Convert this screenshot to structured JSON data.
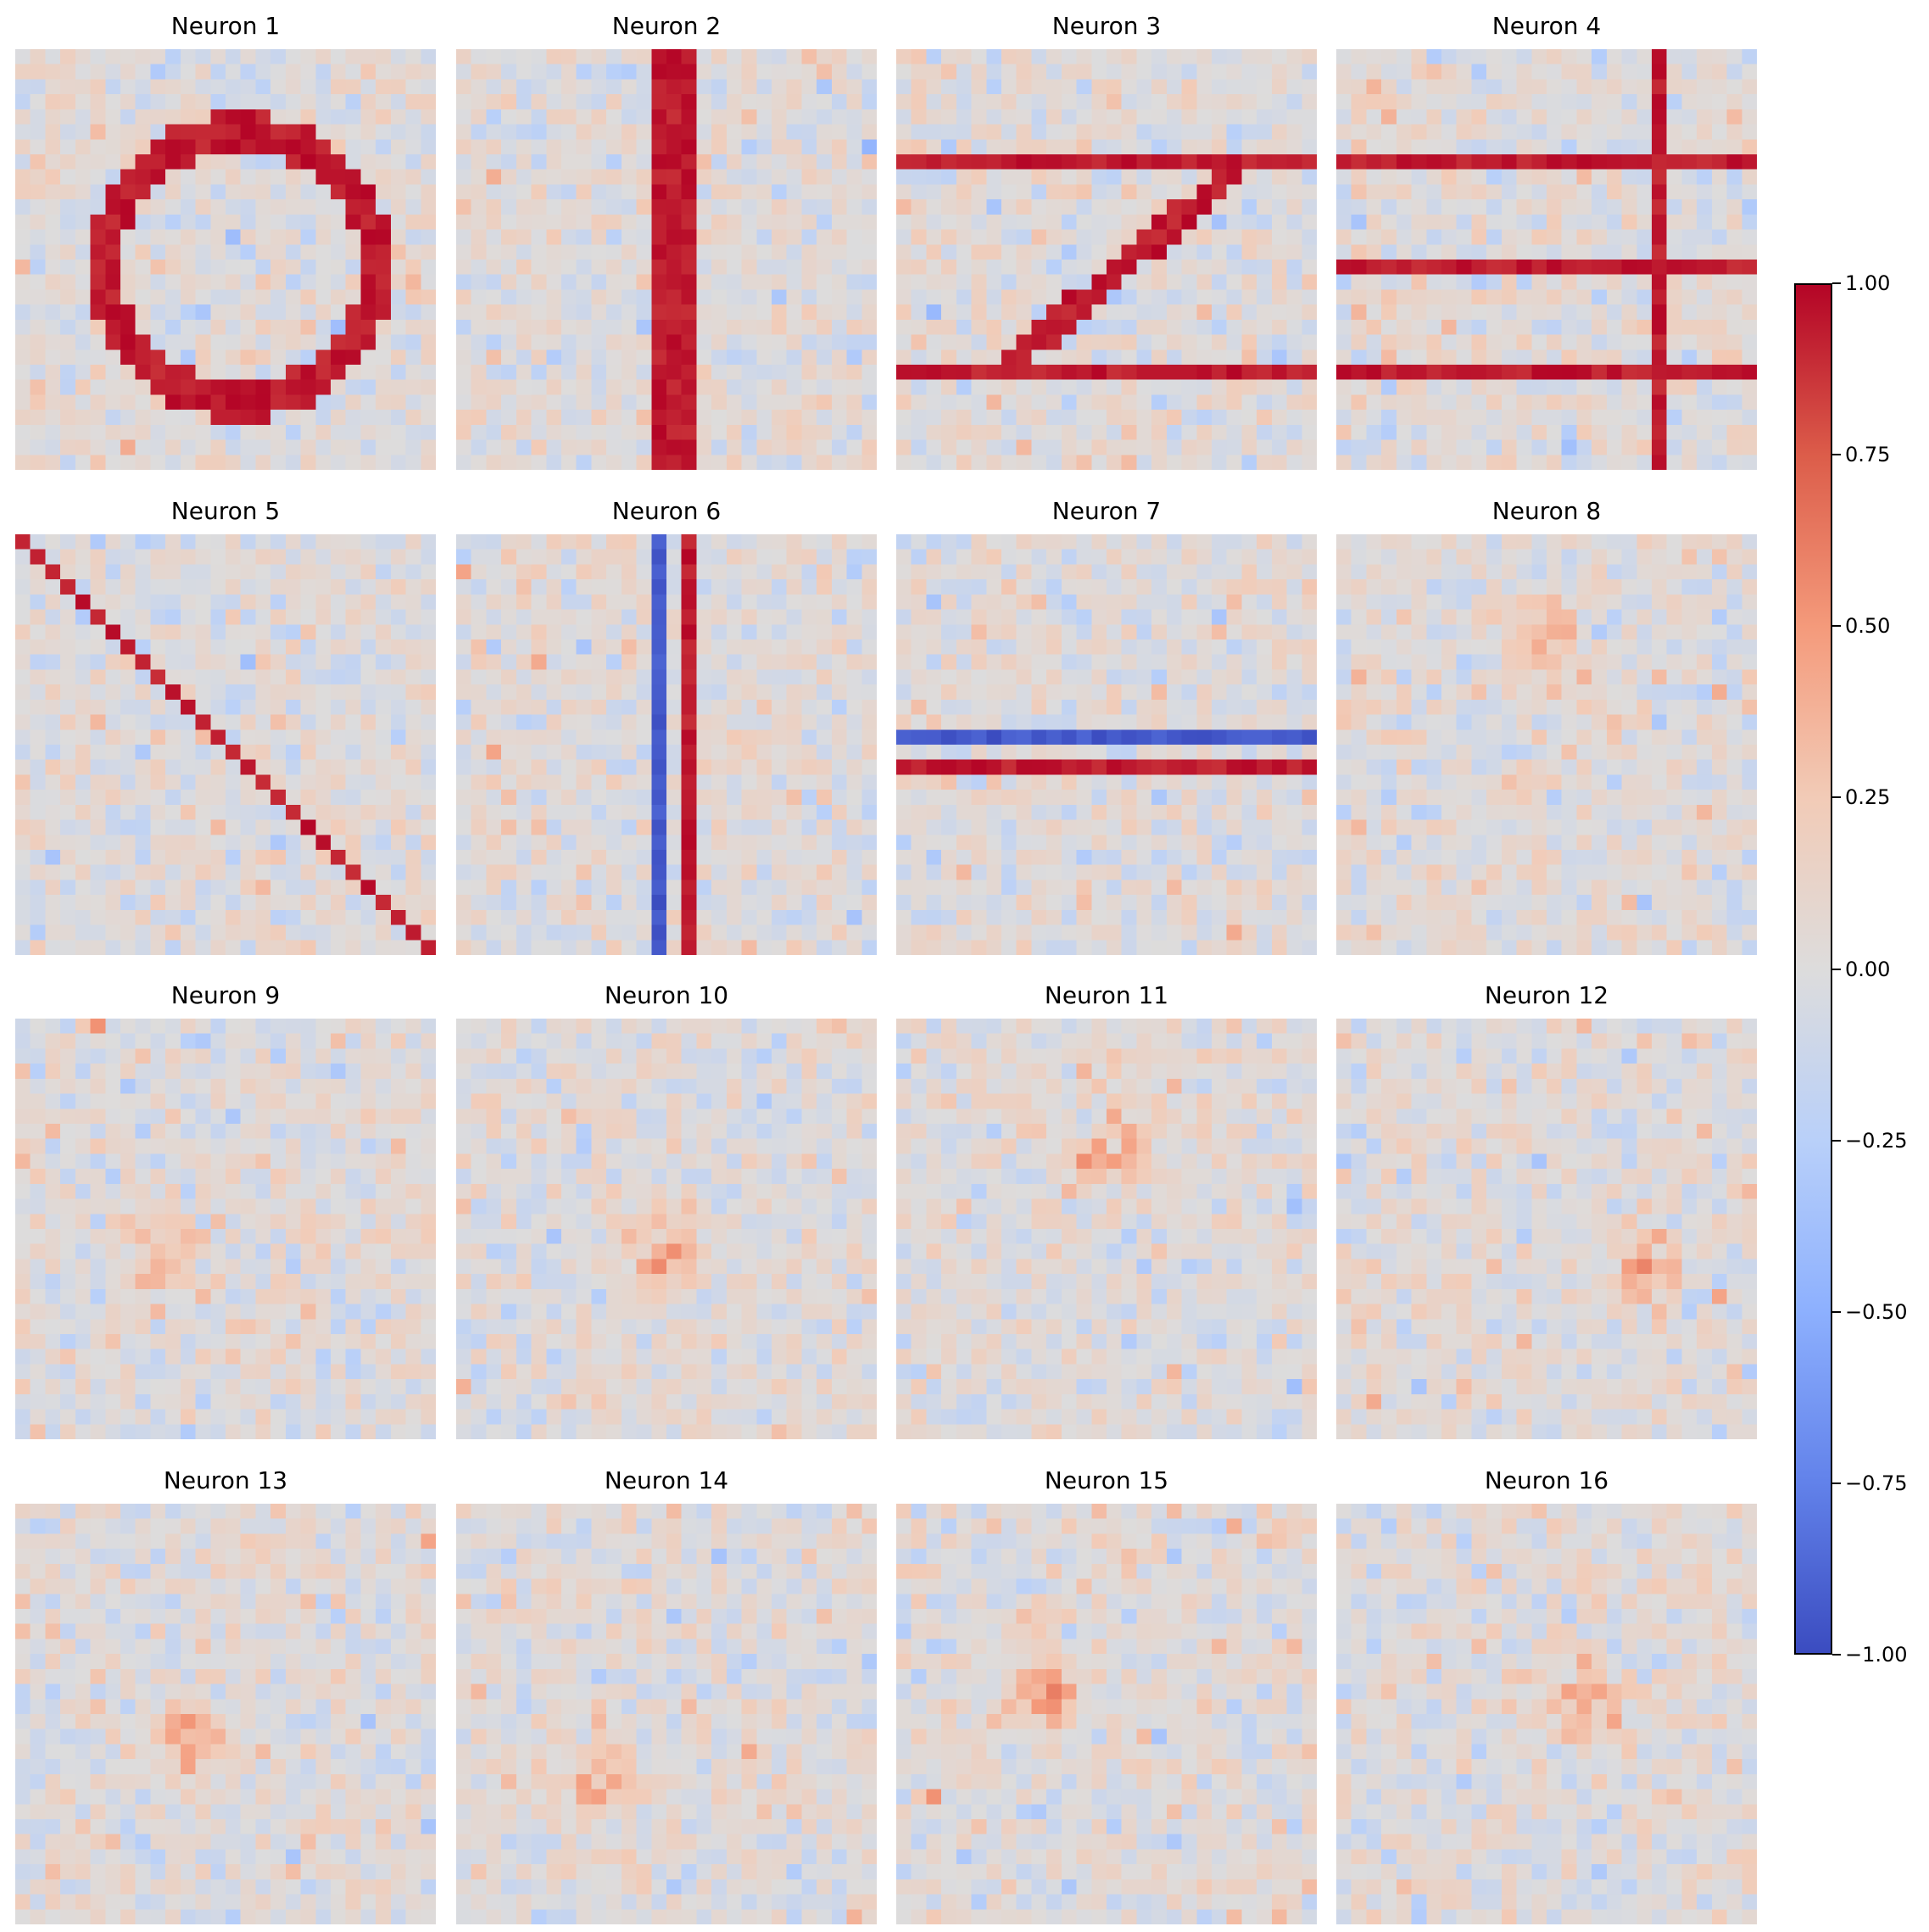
{
  "chart_data": {
    "type": "heatmap",
    "grid_size": [
      28,
      28
    ],
    "colormap": "coolwarm",
    "vmin": -1.0,
    "vmax": 1.0,
    "noise_std": 0.12,
    "panels": [
      {
        "title": "Neuron 1",
        "features": [
          {
            "kind": "ring",
            "center": [
              14,
              14.5
            ],
            "radius": 9,
            "value": 1.0
          }
        ]
      },
      {
        "title": "Neuron 2",
        "features": [
          {
            "kind": "cols",
            "indices": [
              13,
              14,
              15
            ],
            "value": 1.0
          }
        ]
      },
      {
        "title": "Neuron 3",
        "features": [
          {
            "kind": "rows",
            "indices": [
              7,
              21
            ],
            "value": 1.0
          },
          {
            "kind": "line",
            "from": [
              20,
              7
            ],
            "to": [
              8,
              21
            ],
            "width": 2,
            "value": 1.0
          }
        ]
      },
      {
        "title": "Neuron 4",
        "features": [
          {
            "kind": "rows",
            "indices": [
              7,
              14,
              21
            ],
            "value": 1.0
          },
          {
            "kind": "cols",
            "indices": [
              21
            ],
            "value": 1.0
          }
        ]
      },
      {
        "title": "Neuron 5",
        "features": [
          {
            "kind": "diagonal",
            "value": 1.0
          }
        ]
      },
      {
        "title": "Neuron 6",
        "features": [
          {
            "kind": "cols",
            "indices": [
              13
            ],
            "value": -1.0
          },
          {
            "kind": "cols",
            "indices": [
              15
            ],
            "value": 1.0
          }
        ]
      },
      {
        "title": "Neuron 7",
        "features": [
          {
            "kind": "rows",
            "indices": [
              13
            ],
            "value": -1.0
          },
          {
            "kind": "rows",
            "indices": [
              15
            ],
            "value": 1.0
          }
        ]
      },
      {
        "title": "Neuron 8",
        "features": [
          {
            "kind": "blob",
            "center": [
              7,
              13
            ],
            "value": 0.35
          }
        ]
      },
      {
        "title": "Neuron 9",
        "features": [
          {
            "kind": "blob",
            "center": [
              15,
              9
            ],
            "value": 0.35
          }
        ]
      },
      {
        "title": "Neuron 10",
        "features": [
          {
            "kind": "blob",
            "center": [
              15,
              13
            ],
            "value": 0.35
          }
        ]
      },
      {
        "title": "Neuron 11",
        "features": [
          {
            "kind": "blob",
            "center": [
              9,
              13.5
            ],
            "value": 0.4
          }
        ]
      },
      {
        "title": "Neuron 12",
        "features": [
          {
            "kind": "blob",
            "center": [
              16,
              20
            ],
            "value": 0.35
          }
        ]
      },
      {
        "title": "Neuron 13",
        "features": [
          {
            "kind": "blob",
            "center": [
              15,
              11
            ],
            "value": 0.35
          }
        ]
      },
      {
        "title": "Neuron 14",
        "features": [
          {
            "kind": "blob",
            "center": [
              18,
              9
            ],
            "value": 0.4
          }
        ]
      },
      {
        "title": "Neuron 15",
        "features": [
          {
            "kind": "blob",
            "center": [
              12,
              9.5
            ],
            "value": 0.4
          }
        ]
      },
      {
        "title": "Neuron 16",
        "features": [
          {
            "kind": "blob",
            "center": [
              13,
              17
            ],
            "value": 0.4
          }
        ]
      }
    ],
    "colorbar": {
      "ticks": [
        1.0,
        0.75,
        0.5,
        0.25,
        0.0,
        -0.25,
        -0.5,
        -0.75,
        -1.0
      ],
      "tick_labels": [
        "1.00",
        "0.75",
        "0.50",
        "0.25",
        "0.00",
        "−0.25",
        "−0.50",
        "−0.75",
        "−1.00"
      ]
    }
  }
}
